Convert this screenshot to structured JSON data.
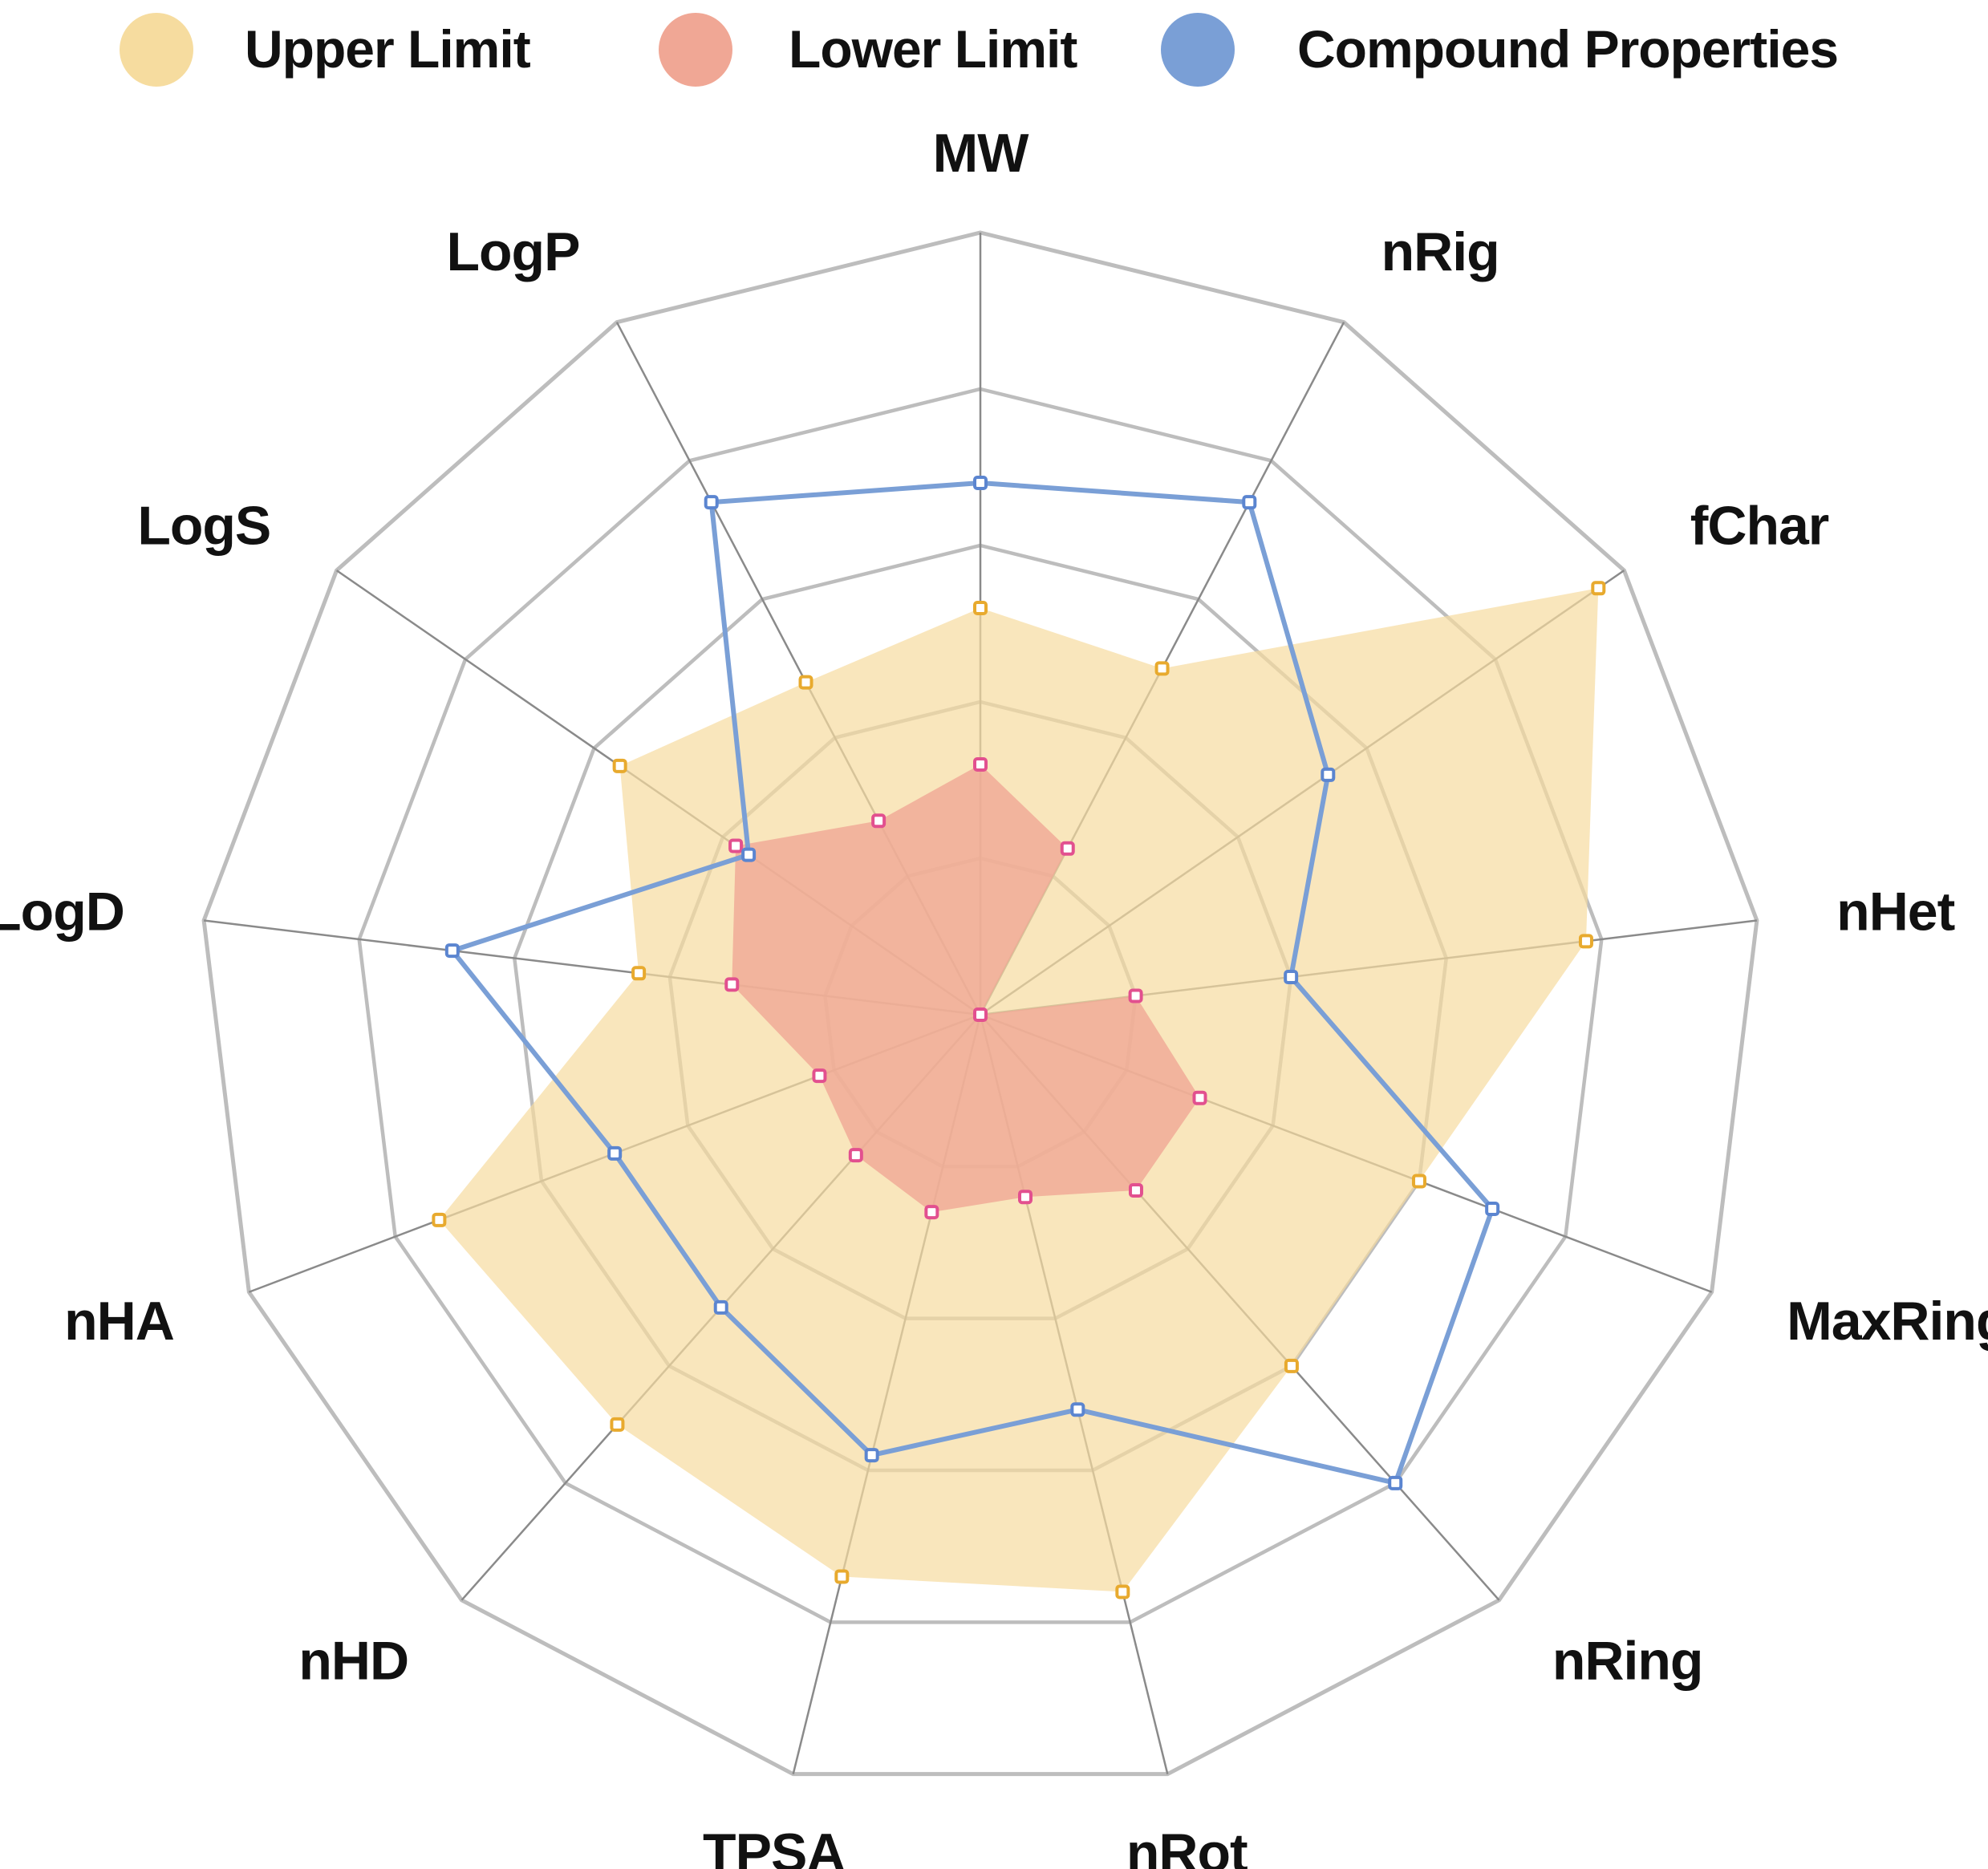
{
  "chart_data": {
    "type": "radar",
    "axes": [
      "MW",
      "nRig",
      "fChar",
      "nHet",
      "MaxRing",
      "nRing",
      "nRot",
      "TPSA",
      "nHD",
      "nHA",
      "LogD",
      "LogS",
      "LogP"
    ],
    "rlim": [
      0,
      5
    ],
    "grid": true,
    "legend_position": "top",
    "series": [
      {
        "name": "Upper Limit",
        "color": "#f6dc9f",
        "marker_color": "#e8aa2e",
        "values": [
          2.6,
          2.5,
          4.8,
          3.9,
          3.0,
          3.0,
          3.8,
          3.7,
          3.5,
          3.7,
          2.2,
          2.8,
          2.4
        ]
      },
      {
        "name": "Lower Limit",
        "color": "#f0a795",
        "marker_color": "#e2508f",
        "values": [
          1.6,
          1.2,
          0.0,
          1.0,
          1.5,
          1.5,
          1.2,
          1.3,
          1.2,
          1.1,
          1.6,
          1.9,
          1.4
        ]
      },
      {
        "name": "Compound Properties",
        "color": "#7a9fd6",
        "marker_color": "#5b85d0",
        "values": [
          3.4,
          3.7,
          2.7,
          2.0,
          3.5,
          4.0,
          2.6,
          2.9,
          2.5,
          2.5,
          3.4,
          1.8,
          3.7
        ]
      }
    ]
  }
}
